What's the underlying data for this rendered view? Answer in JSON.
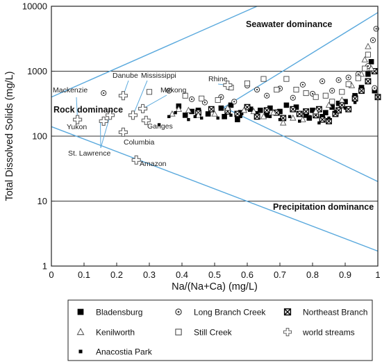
{
  "chart_data": {
    "type": "scatter",
    "xlabel": "Na/(Na+Ca) (mg/L)",
    "ylabel": "Total Dissolved Solids (mg/L)",
    "xlim": [
      0,
      1
    ],
    "ylim": [
      1,
      10000
    ],
    "y_scale": "log",
    "x_ticks": [
      "0",
      "0.1",
      "0.2",
      "0.3",
      "0.4",
      "0.5",
      "0.6",
      "0.7",
      "0.8",
      "0.9",
      "1"
    ],
    "y_ticks": [
      "1",
      "10",
      "100",
      "1000",
      "10000"
    ],
    "region_labels": {
      "seawater": "Seawater dominance",
      "rock": "Rock dominance",
      "precipitation": "Precipitation dominance"
    },
    "boundary_lines": [
      {
        "x": [
          0,
          0.63
        ],
        "y": [
          400,
          10000
        ]
      },
      {
        "x": [
          0,
          1
        ],
        "y": [
          140,
          1.7
        ]
      },
      {
        "x": [
          0.52,
          1
        ],
        "y": [
          290,
          20
        ]
      },
      {
        "x": [
          0.53,
          1
        ],
        "y": [
          280,
          8000
        ]
      }
    ],
    "world_streams": [
      {
        "name": "Mackenzie",
        "x": 0.08,
        "y": 180
      },
      {
        "name": "Yukon",
        "x": 0.16,
        "y": 170
      },
      {
        "name": "St. Lawrence",
        "x": 0.18,
        "y": 210
      },
      {
        "name": "Danube",
        "x": 0.22,
        "y": 420
      },
      {
        "name": "Columbia",
        "x": 0.22,
        "y": 115
      },
      {
        "name": "Mississippi",
        "x": 0.25,
        "y": 210
      },
      {
        "name": "Mekong",
        "x": 0.28,
        "y": 265
      },
      {
        "name": "Ganges",
        "x": 0.29,
        "y": 175
      },
      {
        "name": "Amazon",
        "x": 0.26,
        "y": 43
      },
      {
        "name": "Rhine",
        "x": 0.54,
        "y": 610
      }
    ],
    "series": [
      {
        "name": "Bladensburg",
        "symbol": "filled-square",
        "points": [
          [
            0.39,
            290
          ],
          [
            0.41,
            210
          ],
          [
            0.45,
            250
          ],
          [
            0.48,
            220
          ],
          [
            0.52,
            270
          ],
          [
            0.55,
            300
          ],
          [
            0.58,
            230
          ],
          [
            0.61,
            260
          ],
          [
            0.64,
            250
          ],
          [
            0.67,
            270
          ],
          [
            0.7,
            240
          ],
          [
            0.72,
            300
          ],
          [
            0.75,
            280
          ],
          [
            0.78,
            210
          ],
          [
            0.8,
            250
          ],
          [
            0.83,
            200
          ],
          [
            0.86,
            280
          ],
          [
            0.88,
            320
          ],
          [
            0.9,
            340
          ],
          [
            0.93,
            420
          ],
          [
            0.95,
            560
          ],
          [
            0.97,
            900
          ],
          [
            0.98,
            1400
          ],
          [
            0.99,
            500
          ],
          [
            0.53,
            200
          ],
          [
            0.57,
            180
          ],
          [
            0.79,
            190
          ],
          [
            0.84,
            230
          ],
          [
            0.66,
            210
          ],
          [
            0.43,
            240
          ]
        ]
      },
      {
        "name": "Long Branch Creek",
        "symbol": "dot-circle",
        "points": [
          [
            0.16,
            460
          ],
          [
            0.36,
            500
          ],
          [
            0.43,
            370
          ],
          [
            0.47,
            330
          ],
          [
            0.52,
            400
          ],
          [
            0.56,
            340
          ],
          [
            0.6,
            600
          ],
          [
            0.63,
            520
          ],
          [
            0.66,
            420
          ],
          [
            0.7,
            540
          ],
          [
            0.74,
            390
          ],
          [
            0.77,
            620
          ],
          [
            0.8,
            450
          ],
          [
            0.83,
            700
          ],
          [
            0.86,
            500
          ],
          [
            0.88,
            730
          ],
          [
            0.91,
            800
          ],
          [
            0.94,
            900
          ],
          [
            0.97,
            1200
          ],
          [
            0.985,
            3000
          ],
          [
            0.995,
            4500
          ],
          [
            0.99,
            550
          ]
        ]
      },
      {
        "name": "Northeast Branch",
        "symbol": "hatched-square",
        "points": [
          [
            0.45,
            230
          ],
          [
            0.49,
            260
          ],
          [
            0.54,
            240
          ],
          [
            0.57,
            220
          ],
          [
            0.6,
            280
          ],
          [
            0.63,
            200
          ],
          [
            0.66,
            250
          ],
          [
            0.69,
            230
          ],
          [
            0.71,
            190
          ],
          [
            0.74,
            260
          ],
          [
            0.76,
            220
          ],
          [
            0.78,
            240
          ],
          [
            0.81,
            210
          ],
          [
            0.83,
            180
          ],
          [
            0.85,
            170
          ],
          [
            0.87,
            220
          ],
          [
            0.89,
            300
          ],
          [
            0.91,
            260
          ],
          [
            0.93,
            380
          ],
          [
            0.95,
            500
          ],
          [
            0.97,
            700
          ],
          [
            0.99,
            1000
          ],
          [
            1.0,
            400
          ],
          [
            0.82,
            260
          ],
          [
            0.88,
            250
          ]
        ]
      },
      {
        "name": "Kenilworth",
        "symbol": "triangle",
        "points": [
          [
            0.37,
            220
          ],
          [
            0.39,
            260
          ],
          [
            0.42,
            250
          ],
          [
            0.45,
            210
          ],
          [
            0.5,
            220
          ],
          [
            0.54,
            270
          ],
          [
            0.59,
            250
          ],
          [
            0.62,
            240
          ],
          [
            0.65,
            200
          ],
          [
            0.68,
            230
          ],
          [
            0.71,
            160
          ],
          [
            0.74,
            190
          ],
          [
            0.77,
            180
          ],
          [
            0.81,
            240
          ],
          [
            0.85,
            300
          ],
          [
            0.89,
            360
          ],
          [
            0.92,
            600
          ],
          [
            0.95,
            900
          ],
          [
            0.96,
            1500
          ],
          [
            0.97,
            2400
          ],
          [
            0.98,
            1100
          ]
        ]
      },
      {
        "name": "Still Creek",
        "symbol": "open-square",
        "points": [
          [
            0.3,
            480
          ],
          [
            0.41,
            420
          ],
          [
            0.46,
            380
          ],
          [
            0.51,
            360
          ],
          [
            0.55,
            560
          ],
          [
            0.6,
            650
          ],
          [
            0.65,
            760
          ],
          [
            0.69,
            520
          ],
          [
            0.72,
            760
          ],
          [
            0.75,
            520
          ],
          [
            0.78,
            460
          ],
          [
            0.81,
            400
          ],
          [
            0.84,
            420
          ],
          [
            0.86,
            340
          ],
          [
            0.89,
            480
          ],
          [
            0.91,
            630
          ],
          [
            0.94,
            780
          ],
          [
            0.96,
            1100
          ],
          [
            0.97,
            1800
          ]
        ]
      },
      {
        "name": "world streams",
        "symbol": "open-cross",
        "points": []
      },
      {
        "name": "Anacostia Park",
        "symbol": "small-filled-square",
        "points": [
          [
            0.33,
            150
          ],
          [
            0.36,
            200
          ],
          [
            0.38,
            230
          ],
          [
            0.42,
            180
          ],
          [
            0.44,
            200
          ],
          [
            0.46,
            190
          ],
          [
            0.51,
            190
          ],
          [
            0.55,
            210
          ],
          [
            0.58,
            200
          ],
          [
            0.63,
            230
          ],
          [
            0.67,
            200
          ],
          [
            0.7,
            180
          ],
          [
            0.73,
            200
          ],
          [
            0.76,
            170
          ],
          [
            0.79,
            200
          ],
          [
            0.82,
            160
          ],
          [
            0.85,
            190
          ],
          [
            0.87,
            240
          ],
          [
            0.9,
            270
          ],
          [
            0.93,
            330
          ]
        ]
      }
    ],
    "legend": [
      {
        "label": "Bladensburg",
        "symbol": "filled-square"
      },
      {
        "label": "Long Branch Creek",
        "symbol": "dot-circle"
      },
      {
        "label": "Northeast Branch",
        "symbol": "hatched-square"
      },
      {
        "label": "Kenilworth",
        "symbol": "triangle"
      },
      {
        "label": "Still Creek",
        "symbol": "open-square"
      },
      {
        "label": "world streams",
        "symbol": "open-cross"
      },
      {
        "label": "Anacostia Park",
        "symbol": "small-filled-square"
      }
    ],
    "legend_placement": "bottom",
    "colors": {
      "boundary": "#5aa9dd",
      "gridline": "#333333",
      "marker": "#000000",
      "cross": "#666666"
    }
  }
}
